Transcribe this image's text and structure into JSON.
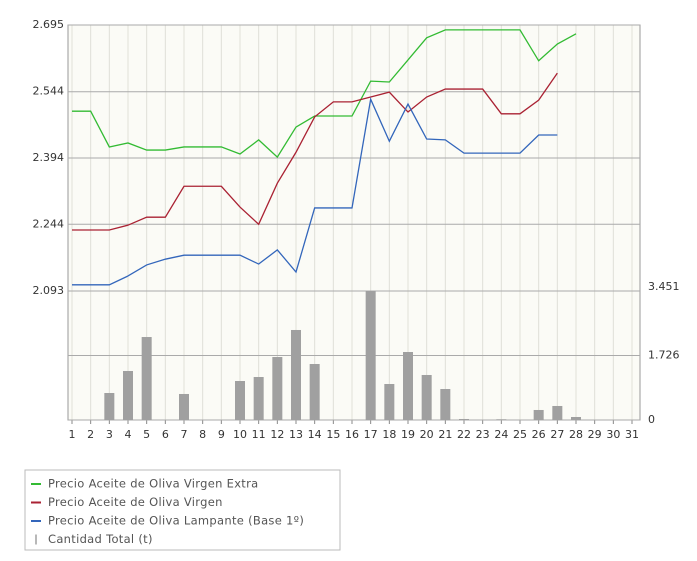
{
  "chart_data": {
    "type": "line",
    "categories": [
      "1",
      "2",
      "3",
      "4",
      "5",
      "6",
      "7",
      "8",
      "9",
      "10",
      "11",
      "12",
      "13",
      "14",
      "15",
      "16",
      "17",
      "18",
      "19",
      "20",
      "21",
      "22",
      "23",
      "24",
      "25",
      "26",
      "27",
      "28",
      "29",
      "30",
      "31"
    ],
    "series": [
      {
        "name": "Precio Aceite de Oliva Virgen Extra",
        "color": "#33bb33",
        "type": "line",
        "values": [
          2500,
          2500,
          2419,
          2428,
          2412,
          2412,
          2419,
          2419,
          2419,
          2403,
          2435,
          2396,
          2464,
          2489,
          2489,
          2489,
          2568,
          2566,
          2616,
          2666,
          2684,
          2684,
          2684,
          2684,
          2684,
          2614,
          2652,
          2675,
          null,
          null,
          null
        ]
      },
      {
        "name": "Precio Aceite de Oliva Virgen",
        "color": "#aa2233",
        "type": "line",
        "values": [
          2231,
          2231,
          2231,
          2242,
          2260,
          2260,
          2330,
          2330,
          2330,
          2283,
          2244,
          2337,
          2407,
          2487,
          2521,
          2521,
          2532,
          2543,
          2498,
          2532,
          2550,
          2550,
          2550,
          2494,
          2494,
          2525,
          2586,
          null,
          null,
          null,
          null
        ]
      },
      {
        "name": "Precio Aceite de Oliva Lampante (Base 1º)",
        "color": "#3366bb",
        "type": "line",
        "values": [
          2107,
          2107,
          2107,
          2127,
          2152,
          2165,
          2174,
          2174,
          2174,
          2174,
          2154,
          2186,
          2136,
          2281,
          2281,
          2281,
          2527,
          2432,
          2516,
          2437,
          2435,
          2405,
          2405,
          2405,
          2405,
          2446,
          2446,
          null,
          null,
          null,
          null
        ]
      },
      {
        "name": "Cantidad Total (t)",
        "color": "#a0a0a0",
        "type": "bar",
        "axis": "y2",
        "values": [
          0,
          0,
          722,
          1311,
          2220,
          0,
          696,
          0,
          0,
          1043,
          1150,
          1685,
          2408,
          1498,
          0,
          0,
          3451,
          963,
          1819,
          1204,
          829,
          27,
          0,
          20,
          0,
          268,
          375,
          80,
          0,
          0,
          0
        ]
      }
    ],
    "ylim": [
      2093,
      2695
    ],
    "yticks": [
      {
        "value": 2093,
        "label": "2.093"
      },
      {
        "value": 2244,
        "label": "2.244"
      },
      {
        "value": 2394,
        "label": "2.394"
      },
      {
        "value": 2544,
        "label": "2.544"
      },
      {
        "value": 2695,
        "label": "2.695"
      }
    ],
    "y2lim": [
      0,
      3451
    ],
    "y2ticks": [
      0,
      {
        "value": 1726,
        "label": "1.726"
      },
      {
        "value": 3451,
        "label": "3.451"
      }
    ],
    "grid": true
  }
}
